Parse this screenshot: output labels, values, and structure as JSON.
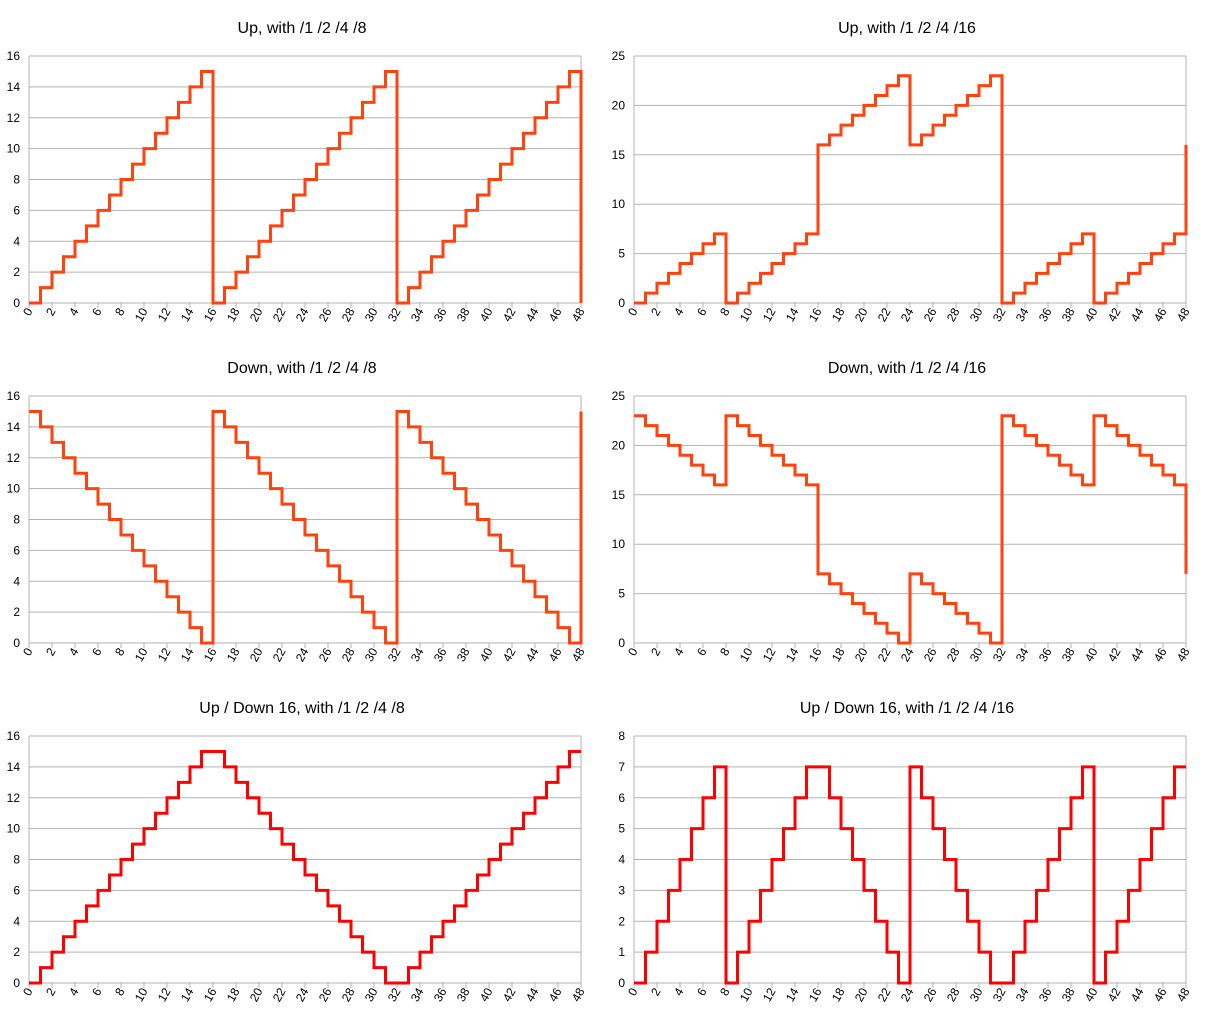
{
  "chart_data": [
    {
      "type": "line",
      "step": true,
      "title": "Up, with /1 /2 /4 /8",
      "ylim": [
        0,
        16
      ],
      "yticks": [
        0,
        2,
        4,
        6,
        8,
        10,
        12,
        14,
        16
      ],
      "xlim": [
        0,
        48
      ],
      "xticks": [
        0,
        2,
        4,
        6,
        8,
        10,
        12,
        14,
        16,
        18,
        20,
        22,
        24,
        26,
        28,
        30,
        32,
        34,
        36,
        38,
        40,
        42,
        44,
        46,
        48
      ],
      "color": "#ff420e",
      "grid": true,
      "series": [
        {
          "values": [
            0,
            1,
            2,
            3,
            4,
            5,
            6,
            7,
            8,
            9,
            10,
            11,
            12,
            13,
            14,
            15,
            0,
            1,
            2,
            3,
            4,
            5,
            6,
            7,
            8,
            9,
            10,
            11,
            12,
            13,
            14,
            15,
            0,
            1,
            2,
            3,
            4,
            5,
            6,
            7,
            8,
            9,
            10,
            11,
            12,
            13,
            14,
            15,
            0
          ]
        }
      ]
    },
    {
      "type": "line",
      "step": true,
      "title": "Up, with /1 /2 /4 /16",
      "ylim": [
        0,
        25
      ],
      "yticks": [
        0,
        5,
        10,
        15,
        20,
        25
      ],
      "xlim": [
        0,
        48
      ],
      "xticks": [
        0,
        2,
        4,
        6,
        8,
        10,
        12,
        14,
        16,
        18,
        20,
        22,
        24,
        26,
        28,
        30,
        32,
        34,
        36,
        38,
        40,
        42,
        44,
        46,
        48
      ],
      "color": "#ff420e",
      "grid": true,
      "series": [
        {
          "values": [
            0,
            1,
            2,
            3,
            4,
            5,
            6,
            7,
            0,
            1,
            2,
            3,
            4,
            5,
            6,
            7,
            16,
            17,
            18,
            19,
            20,
            21,
            22,
            23,
            16,
            17,
            18,
            19,
            20,
            21,
            22,
            23,
            0,
            1,
            2,
            3,
            4,
            5,
            6,
            7,
            0,
            1,
            2,
            3,
            4,
            5,
            6,
            7,
            16
          ]
        }
      ]
    },
    {
      "type": "line",
      "step": true,
      "title": "Down, with /1 /2 /4 /8",
      "ylim": [
        0,
        16
      ],
      "yticks": [
        0,
        2,
        4,
        6,
        8,
        10,
        12,
        14,
        16
      ],
      "xlim": [
        0,
        48
      ],
      "xticks": [
        0,
        2,
        4,
        6,
        8,
        10,
        12,
        14,
        16,
        18,
        20,
        22,
        24,
        26,
        28,
        30,
        32,
        34,
        36,
        38,
        40,
        42,
        44,
        46,
        48
      ],
      "color": "#ff420e",
      "grid": true,
      "series": [
        {
          "values": [
            15,
            14,
            13,
            12,
            11,
            10,
            9,
            8,
            7,
            6,
            5,
            4,
            3,
            2,
            1,
            0,
            15,
            14,
            13,
            12,
            11,
            10,
            9,
            8,
            7,
            6,
            5,
            4,
            3,
            2,
            1,
            0,
            15,
            14,
            13,
            12,
            11,
            10,
            9,
            8,
            7,
            6,
            5,
            4,
            3,
            2,
            1,
            0,
            15
          ]
        }
      ]
    },
    {
      "type": "line",
      "step": true,
      "title": "Down, with /1 /2 /4 /16",
      "ylim": [
        0,
        25
      ],
      "yticks": [
        0,
        5,
        10,
        15,
        20,
        25
      ],
      "xlim": [
        0,
        48
      ],
      "xticks": [
        0,
        2,
        4,
        6,
        8,
        10,
        12,
        14,
        16,
        18,
        20,
        22,
        24,
        26,
        28,
        30,
        32,
        34,
        36,
        38,
        40,
        42,
        44,
        46,
        48
      ],
      "color": "#ff420e",
      "grid": true,
      "series": [
        {
          "values": [
            23,
            22,
            21,
            20,
            19,
            18,
            17,
            16,
            23,
            22,
            21,
            20,
            19,
            18,
            17,
            16,
            7,
            6,
            5,
            4,
            3,
            2,
            1,
            0,
            7,
            6,
            5,
            4,
            3,
            2,
            1,
            0,
            23,
            22,
            21,
            20,
            19,
            18,
            17,
            16,
            23,
            22,
            21,
            20,
            19,
            18,
            17,
            16,
            7
          ]
        }
      ]
    },
    {
      "type": "line",
      "step": true,
      "title": "Up / Down 16, with /1 /2 /4 /8",
      "ylim": [
        0,
        16
      ],
      "yticks": [
        0,
        2,
        4,
        6,
        8,
        10,
        12,
        14,
        16
      ],
      "xlim": [
        0,
        48
      ],
      "xticks": [
        0,
        2,
        4,
        6,
        8,
        10,
        12,
        14,
        16,
        18,
        20,
        22,
        24,
        26,
        28,
        30,
        32,
        34,
        36,
        38,
        40,
        42,
        44,
        46,
        48
      ],
      "color": "#ff0000",
      "grid": true,
      "series": [
        {
          "values": [
            0,
            1,
            2,
            3,
            4,
            5,
            6,
            7,
            8,
            9,
            10,
            11,
            12,
            13,
            14,
            15,
            15,
            14,
            13,
            12,
            11,
            10,
            9,
            8,
            7,
            6,
            5,
            4,
            3,
            2,
            1,
            0,
            0,
            1,
            2,
            3,
            4,
            5,
            6,
            7,
            8,
            9,
            10,
            11,
            12,
            13,
            14,
            15,
            15
          ]
        }
      ]
    },
    {
      "type": "line",
      "step": true,
      "title": "Up / Down 16, with /1 /2 /4 /16",
      "ylim": [
        0,
        8
      ],
      "yticks": [
        0,
        1,
        2,
        3,
        4,
        5,
        6,
        7,
        8
      ],
      "xlim": [
        0,
        48
      ],
      "xticks": [
        0,
        2,
        4,
        6,
        8,
        10,
        12,
        14,
        16,
        18,
        20,
        22,
        24,
        26,
        28,
        30,
        32,
        34,
        36,
        38,
        40,
        42,
        44,
        46,
        48
      ],
      "color": "#ff0000",
      "grid": true,
      "series": [
        {
          "values": [
            0,
            1,
            2,
            3,
            4,
            5,
            6,
            7,
            0,
            1,
            2,
            3,
            4,
            5,
            6,
            7,
            7,
            6,
            5,
            4,
            3,
            2,
            1,
            0,
            7,
            6,
            5,
            4,
            3,
            2,
            1,
            0,
            0,
            1,
            2,
            3,
            4,
            5,
            6,
            7,
            0,
            1,
            2,
            3,
            4,
            5,
            6,
            7,
            7
          ]
        }
      ]
    }
  ]
}
